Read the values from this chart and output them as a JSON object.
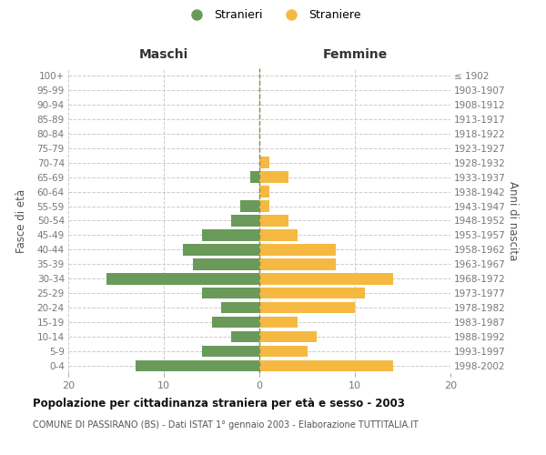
{
  "age_groups": [
    "0-4",
    "5-9",
    "10-14",
    "15-19",
    "20-24",
    "25-29",
    "30-34",
    "35-39",
    "40-44",
    "45-49",
    "50-54",
    "55-59",
    "60-64",
    "65-69",
    "70-74",
    "75-79",
    "80-84",
    "85-89",
    "90-94",
    "95-99",
    "100+"
  ],
  "birth_years": [
    "1998-2002",
    "1993-1997",
    "1988-1992",
    "1983-1987",
    "1978-1982",
    "1973-1977",
    "1968-1972",
    "1963-1967",
    "1958-1962",
    "1953-1957",
    "1948-1952",
    "1943-1947",
    "1938-1942",
    "1933-1937",
    "1928-1932",
    "1923-1927",
    "1918-1922",
    "1913-1917",
    "1908-1912",
    "1903-1907",
    "≤ 1902"
  ],
  "males": [
    13,
    6,
    3,
    5,
    4,
    6,
    16,
    7,
    8,
    6,
    3,
    2,
    0,
    1,
    0,
    0,
    0,
    0,
    0,
    0,
    0
  ],
  "females": [
    14,
    5,
    6,
    4,
    10,
    11,
    14,
    8,
    8,
    4,
    3,
    1,
    1,
    3,
    1,
    0,
    0,
    0,
    0,
    0,
    0
  ],
  "male_color": "#6a9a5a",
  "female_color": "#f5b942",
  "male_label": "Stranieri",
  "female_label": "Straniere",
  "title": "Popolazione per cittadinanza straniera per età e sesso - 2003",
  "subtitle": "COMUNE DI PASSIRANO (BS) - Dati ISTAT 1° gennaio 2003 - Elaborazione TUTTITALIA.IT",
  "left_header": "Maschi",
  "right_header": "Femmine",
  "left_ylabel": "Fasce di età",
  "right_ylabel": "Anni di nascita",
  "xlim": 20,
  "background_color": "#ffffff",
  "grid_color": "#cccccc",
  "axis_label_color": "#555555",
  "tick_label_color": "#777777"
}
